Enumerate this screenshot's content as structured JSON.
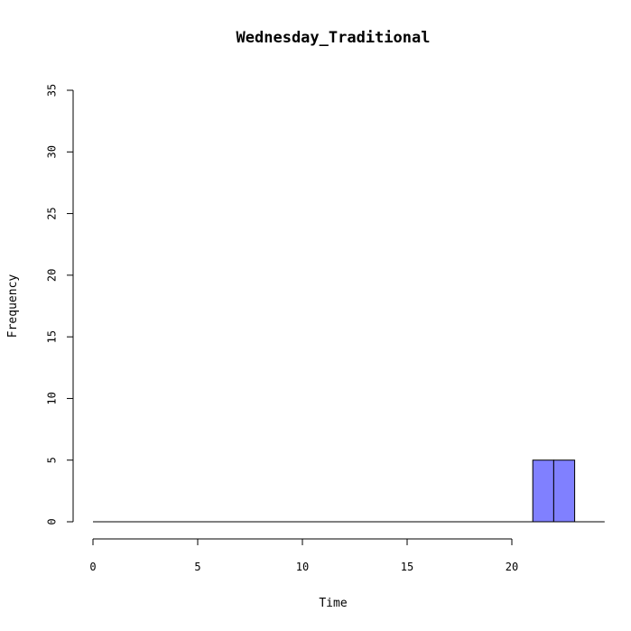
{
  "chart_data": {
    "type": "bar",
    "title": "Wednesday_Traditional",
    "xlabel": "Time",
    "ylabel": "Frequency",
    "xlim": [
      0,
      24
    ],
    "ylim": [
      0,
      35
    ],
    "x_ticks": [
      0,
      5,
      10,
      15,
      20
    ],
    "y_ticks": [
      0,
      5,
      10,
      15,
      20,
      25,
      30,
      35
    ],
    "bins": [
      {
        "x0": 0,
        "x1": 1,
        "count": 0
      },
      {
        "x0": 1,
        "x1": 2,
        "count": 0
      },
      {
        "x0": 2,
        "x1": 3,
        "count": 0
      },
      {
        "x0": 3,
        "x1": 4,
        "count": 0
      },
      {
        "x0": 4,
        "x1": 5,
        "count": 0
      },
      {
        "x0": 5,
        "x1": 6,
        "count": 0
      },
      {
        "x0": 6,
        "x1": 7,
        "count": 0
      },
      {
        "x0": 7,
        "x1": 8,
        "count": 0
      },
      {
        "x0": 8,
        "x1": 9,
        "count": 0
      },
      {
        "x0": 9,
        "x1": 10,
        "count": 0
      },
      {
        "x0": 10,
        "x1": 11,
        "count": 0
      },
      {
        "x0": 11,
        "x1": 12,
        "count": 0
      },
      {
        "x0": 12,
        "x1": 13,
        "count": 0
      },
      {
        "x0": 13,
        "x1": 14,
        "count": 0
      },
      {
        "x0": 14,
        "x1": 15,
        "count": 0
      },
      {
        "x0": 15,
        "x1": 16,
        "count": 0
      },
      {
        "x0": 16,
        "x1": 17,
        "count": 0
      },
      {
        "x0": 17,
        "x1": 18,
        "count": 0
      },
      {
        "x0": 18,
        "x1": 19,
        "count": 0
      },
      {
        "x0": 19,
        "x1": 20,
        "count": 0
      },
      {
        "x0": 20,
        "x1": 21,
        "count": 0
      },
      {
        "x0": 21,
        "x1": 22,
        "count": 5
      },
      {
        "x0": 22,
        "x1": 23,
        "count": 5
      }
    ],
    "bar_color": "#8080ff",
    "grid": false,
    "legend": "none"
  }
}
